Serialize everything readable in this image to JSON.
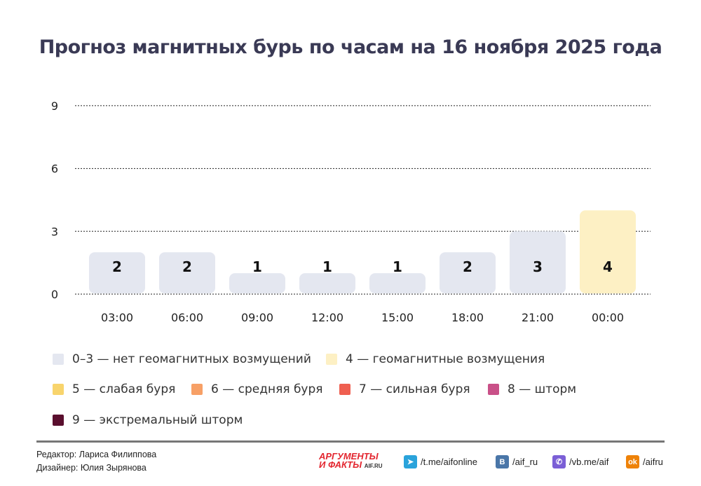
{
  "chart_data": {
    "type": "bar",
    "title": "Прогноз магнитных бурь по часам на 16 ноября 2025 года",
    "categories": [
      "03:00",
      "06:00",
      "09:00",
      "12:00",
      "15:00",
      "18:00",
      "21:00",
      "00:00"
    ],
    "values": [
      2,
      2,
      1,
      1,
      1,
      2,
      3,
      4
    ],
    "yticks": [
      "0",
      "3",
      "6",
      "9"
    ],
    "ylim": [
      0,
      9
    ],
    "grid": true,
    "xlabel": "",
    "ylabel": ""
  },
  "legend": [
    {
      "label": "0–3 — нет геомагнитных возмущений",
      "color": "#e4e7f0"
    },
    {
      "label": "4 — геомагнитные возмущения",
      "color": "#fdf0c4"
    },
    {
      "label": "5 — слабая буря",
      "color": "#f8d46c"
    },
    {
      "label": "6 — средняя буря",
      "color": "#f7a066"
    },
    {
      "label": "7 — сильная буря",
      "color": "#ef5f50"
    },
    {
      "label": "8 — шторм",
      "color": "#c95088"
    },
    {
      "label": "9 — экстремальный шторм",
      "color": "#5a0f2e"
    }
  ],
  "footer": {
    "editor": "Редактор: Лариса Филиппова",
    "designer": "Дизайнер: Юлия Зырянова",
    "logo": "АРГУМЕНТЫ И ФАКТЫ AIF.RU",
    "telegram": "/t.me/aifonline",
    "vk": "/aif_ru",
    "viber": "/vb.me/aif",
    "ok": "/aifru"
  }
}
